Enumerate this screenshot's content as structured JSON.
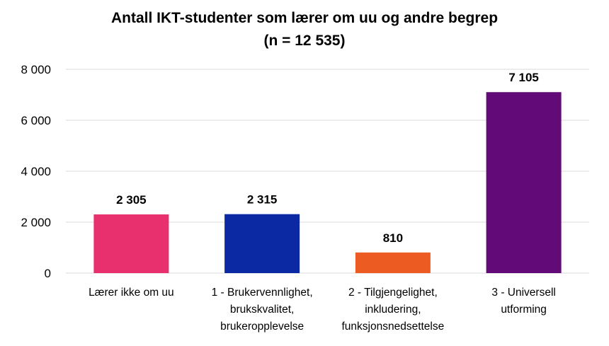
{
  "chart_data": {
    "type": "bar",
    "title_lines": [
      "Antall IKT-studenter som lærer om uu og andre begrep",
      "(n = 12 535)"
    ],
    "categories": [
      [
        "Lærer ikke om uu"
      ],
      [
        "1 - Brukervennlighet,",
        "brukskvalitet,",
        "brukeropplevelse"
      ],
      [
        "2 - Tilgjengelighet,",
        "inkludering,",
        "funksjonsnedsettelse"
      ],
      [
        "3 - Universell",
        "utforming"
      ]
    ],
    "values": [
      2305,
      2315,
      810,
      7105
    ],
    "value_labels": [
      "2 305",
      "2 315",
      "810",
      "7 105"
    ],
    "bar_colors": [
      "#e8306e",
      "#0a29a3",
      "#eb5b22",
      "#620a77"
    ],
    "ylim": [
      0,
      8000
    ],
    "yticks": [
      0,
      2000,
      4000,
      6000,
      8000
    ],
    "ytick_labels": [
      "0",
      "2 000",
      "4 000",
      "6 000",
      "8 000"
    ],
    "grid": true,
    "legend": "none"
  }
}
